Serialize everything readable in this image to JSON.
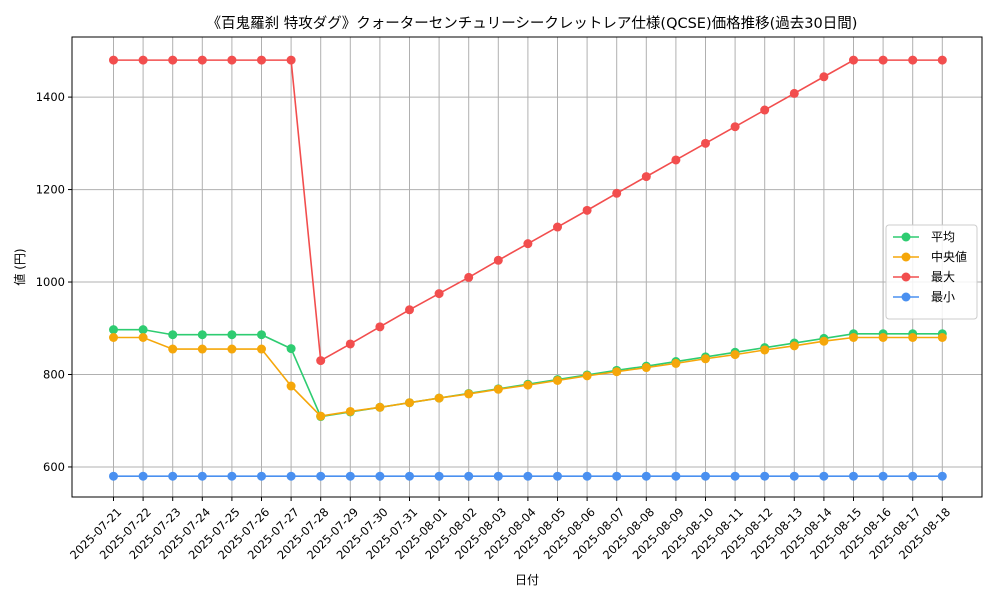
{
  "chart_data": {
    "type": "line",
    "title": "《百鬼羅刹 特攻ダグ》クォーターセンチュリーシークレットレア仕様(QCSE)価格推移(過去30日間)",
    "xlabel": "日付",
    "ylabel": "値 (円)",
    "ylim": [
      535,
      1530
    ],
    "yticks": [
      600,
      800,
      1000,
      1200,
      1400
    ],
    "grid": true,
    "legend_position": "center-right",
    "categories": [
      "2025-07-21",
      "2025-07-22",
      "2025-07-23",
      "2025-07-24",
      "2025-07-25",
      "2025-07-26",
      "2025-07-27",
      "2025-07-28",
      "2025-07-29",
      "2025-07-30",
      "2025-07-31",
      "2025-08-01",
      "2025-08-02",
      "2025-08-03",
      "2025-08-04",
      "2025-08-05",
      "2025-08-06",
      "2025-08-07",
      "2025-08-08",
      "2025-08-09",
      "2025-08-10",
      "2025-08-11",
      "2025-08-12",
      "2025-08-13",
      "2025-08-14",
      "2025-08-15",
      "2025-08-16",
      "2025-08-17",
      "2025-08-18"
    ],
    "series": [
      {
        "name": "平均",
        "color": "#2ecc71",
        "values": [
          897,
          897,
          886,
          886,
          886,
          886,
          856,
          709,
          719,
          729,
          739,
          749,
          759,
          769,
          779,
          789,
          799,
          809,
          818,
          828,
          838,
          848,
          858,
          868,
          878,
          888,
          888,
          888,
          888
        ]
      },
      {
        "name": "中央値",
        "color": "#f5a70a",
        "values": [
          880,
          880,
          855,
          855,
          855,
          855,
          775,
          710,
          720,
          729,
          739,
          749,
          758,
          768,
          777,
          787,
          797,
          806,
          815,
          824,
          834,
          843,
          853,
          862,
          872,
          880,
          880,
          880,
          880
        ]
      },
      {
        "name": "最大",
        "color": "#f24e4e",
        "values": [
          1480,
          1480,
          1480,
          1480,
          1480,
          1480,
          1480,
          830,
          866,
          903,
          940,
          975,
          1010,
          1047,
          1083,
          1119,
          1155,
          1192,
          1228,
          1264,
          1300,
          1336,
          1372,
          1408,
          1444,
          1480,
          1480,
          1480,
          1480
        ]
      },
      {
        "name": "最小",
        "color": "#4a90f0",
        "values": [
          580,
          580,
          580,
          580,
          580,
          580,
          580,
          580,
          580,
          580,
          580,
          580,
          580,
          580,
          580,
          580,
          580,
          580,
          580,
          580,
          580,
          580,
          580,
          580,
          580,
          580,
          580,
          580,
          580
        ]
      }
    ]
  }
}
